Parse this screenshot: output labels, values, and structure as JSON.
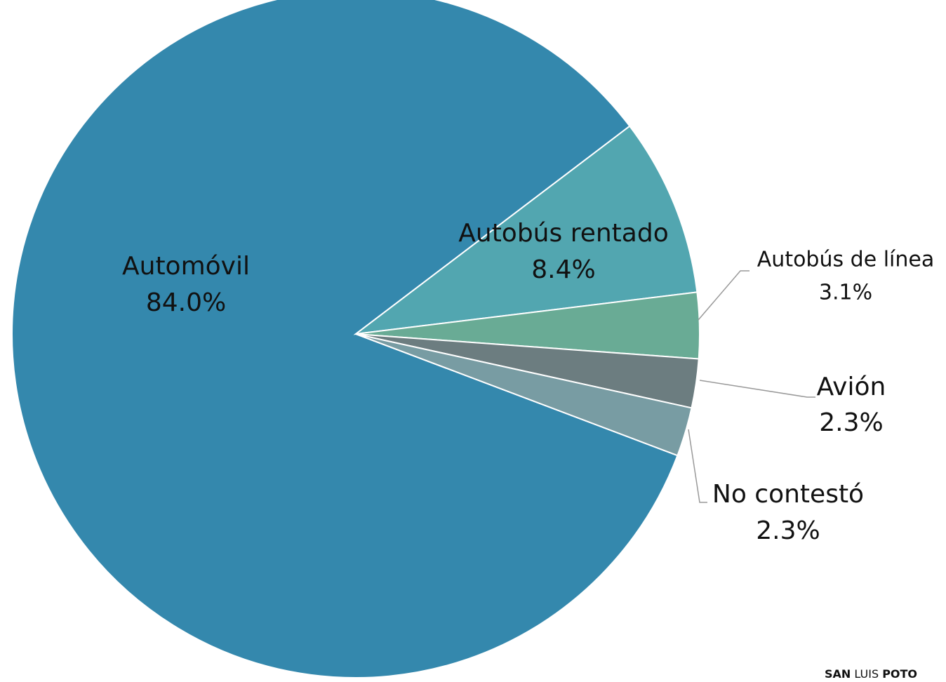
{
  "chart_data": {
    "type": "pie",
    "categories": [
      "Automóvil",
      "Autobús rentado",
      "Autobús de línea",
      "Avión",
      "No contestó"
    ],
    "values": [
      84.0,
      8.4,
      3.1,
      2.3,
      2.3
    ],
    "value_labels": [
      "84.0%",
      "8.4%",
      "3.1%",
      "2.3%",
      "2.3%"
    ],
    "colors": [
      "#3488ad",
      "#52a6b0",
      "#69ab95",
      "#6c7d80",
      "#789ca3"
    ],
    "brand": [
      "SAN",
      "LUIS",
      "POTO"
    ]
  }
}
